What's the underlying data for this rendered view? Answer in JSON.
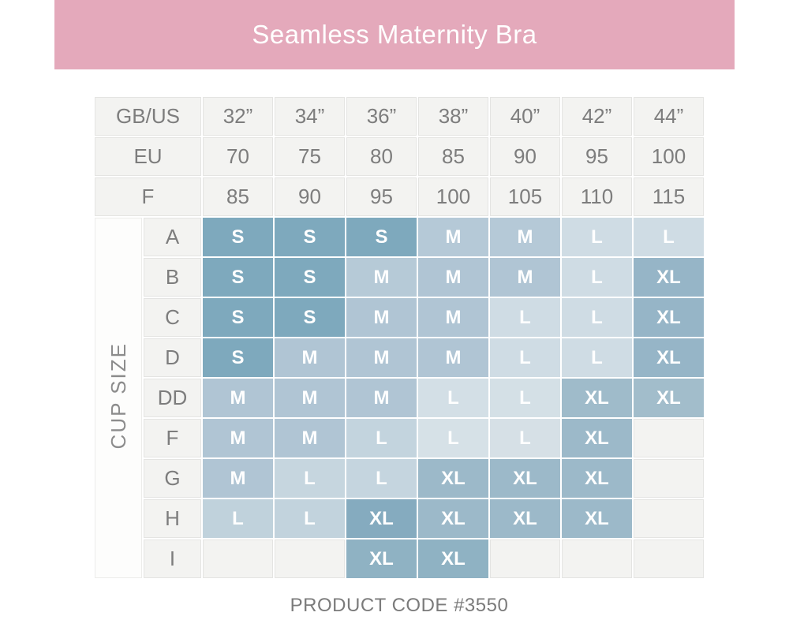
{
  "banner": {
    "title": "Seamless Maternity Bra",
    "bg_color": "#e4a9bb",
    "text_color": "#ffffff"
  },
  "footer": {
    "product_code": "PRODUCT CODE #3550"
  },
  "chart_data": {
    "type": "table",
    "title": "Seamless Maternity Bra",
    "column_header_rows": [
      {
        "label": "GB/US",
        "values": [
          "32”",
          "34”",
          "36”",
          "38”",
          "40”",
          "42”",
          "44”"
        ]
      },
      {
        "label": "EU",
        "values": [
          "70",
          "75",
          "80",
          "85",
          "90",
          "95",
          "100"
        ]
      },
      {
        "label": "F",
        "values": [
          "85",
          "90",
          "95",
          "100",
          "105",
          "110",
          "115"
        ]
      }
    ],
    "row_axis_label": "CUP SIZE",
    "rows": [
      {
        "cup": "A",
        "cells": [
          "S",
          "S",
          "S",
          "M",
          "M",
          "L",
          "L"
        ]
      },
      {
        "cup": "B",
        "cells": [
          "S",
          "S",
          "M",
          "M",
          "M",
          "L",
          "XL"
        ]
      },
      {
        "cup": "C",
        "cells": [
          "S",
          "S",
          "M",
          "M",
          "L",
          "L",
          "XL"
        ]
      },
      {
        "cup": "D",
        "cells": [
          "S",
          "M",
          "M",
          "M",
          "L",
          "L",
          "XL"
        ]
      },
      {
        "cup": "DD",
        "cells": [
          "M",
          "M",
          "M",
          "L",
          "L",
          "XL",
          "XL"
        ]
      },
      {
        "cup": "F",
        "cells": [
          "M",
          "M",
          "L",
          "L",
          "L",
          "XL",
          ""
        ]
      },
      {
        "cup": "G",
        "cells": [
          "M",
          "L",
          "L",
          "XL",
          "XL",
          "XL",
          ""
        ]
      },
      {
        "cup": "H",
        "cells": [
          "L",
          "L",
          "XL",
          "XL",
          "XL",
          "XL",
          ""
        ]
      },
      {
        "cup": "I",
        "cells": [
          "",
          "",
          "XL",
          "XL",
          "",
          "",
          ""
        ]
      }
    ],
    "size_colors": {
      "S": "#7ea9bd",
      "M": "#b0c5d4",
      "L": "#cfdce4",
      "XL": "#9cb9c9"
    },
    "empty_cell_color": "#f3f3f1",
    "cell_color_overrides": {
      "0-3": "#b5c9d7",
      "0-4": "#b5c9d7",
      "1-2": "#b6cad7",
      "1-6": "#96b5c7",
      "2-6": "#96b5c7",
      "3-6": "#96b5c7",
      "4-3": "#d3dfe6",
      "4-4": "#d4e0e6",
      "4-5": "#9fbbca",
      "4-6": "#a2bdcb",
      "5-2": "#c3d4de",
      "5-3": "#d6e1e7",
      "5-4": "#d6e0e6",
      "6-1": "#c6d6df",
      "6-2": "#c5d5df",
      "7-0": "#c0d2dc",
      "7-1": "#c2d3dd",
      "7-2": "#85abbf",
      "8-2": "#8fb2c3",
      "8-3": "#8fb2c3"
    }
  }
}
